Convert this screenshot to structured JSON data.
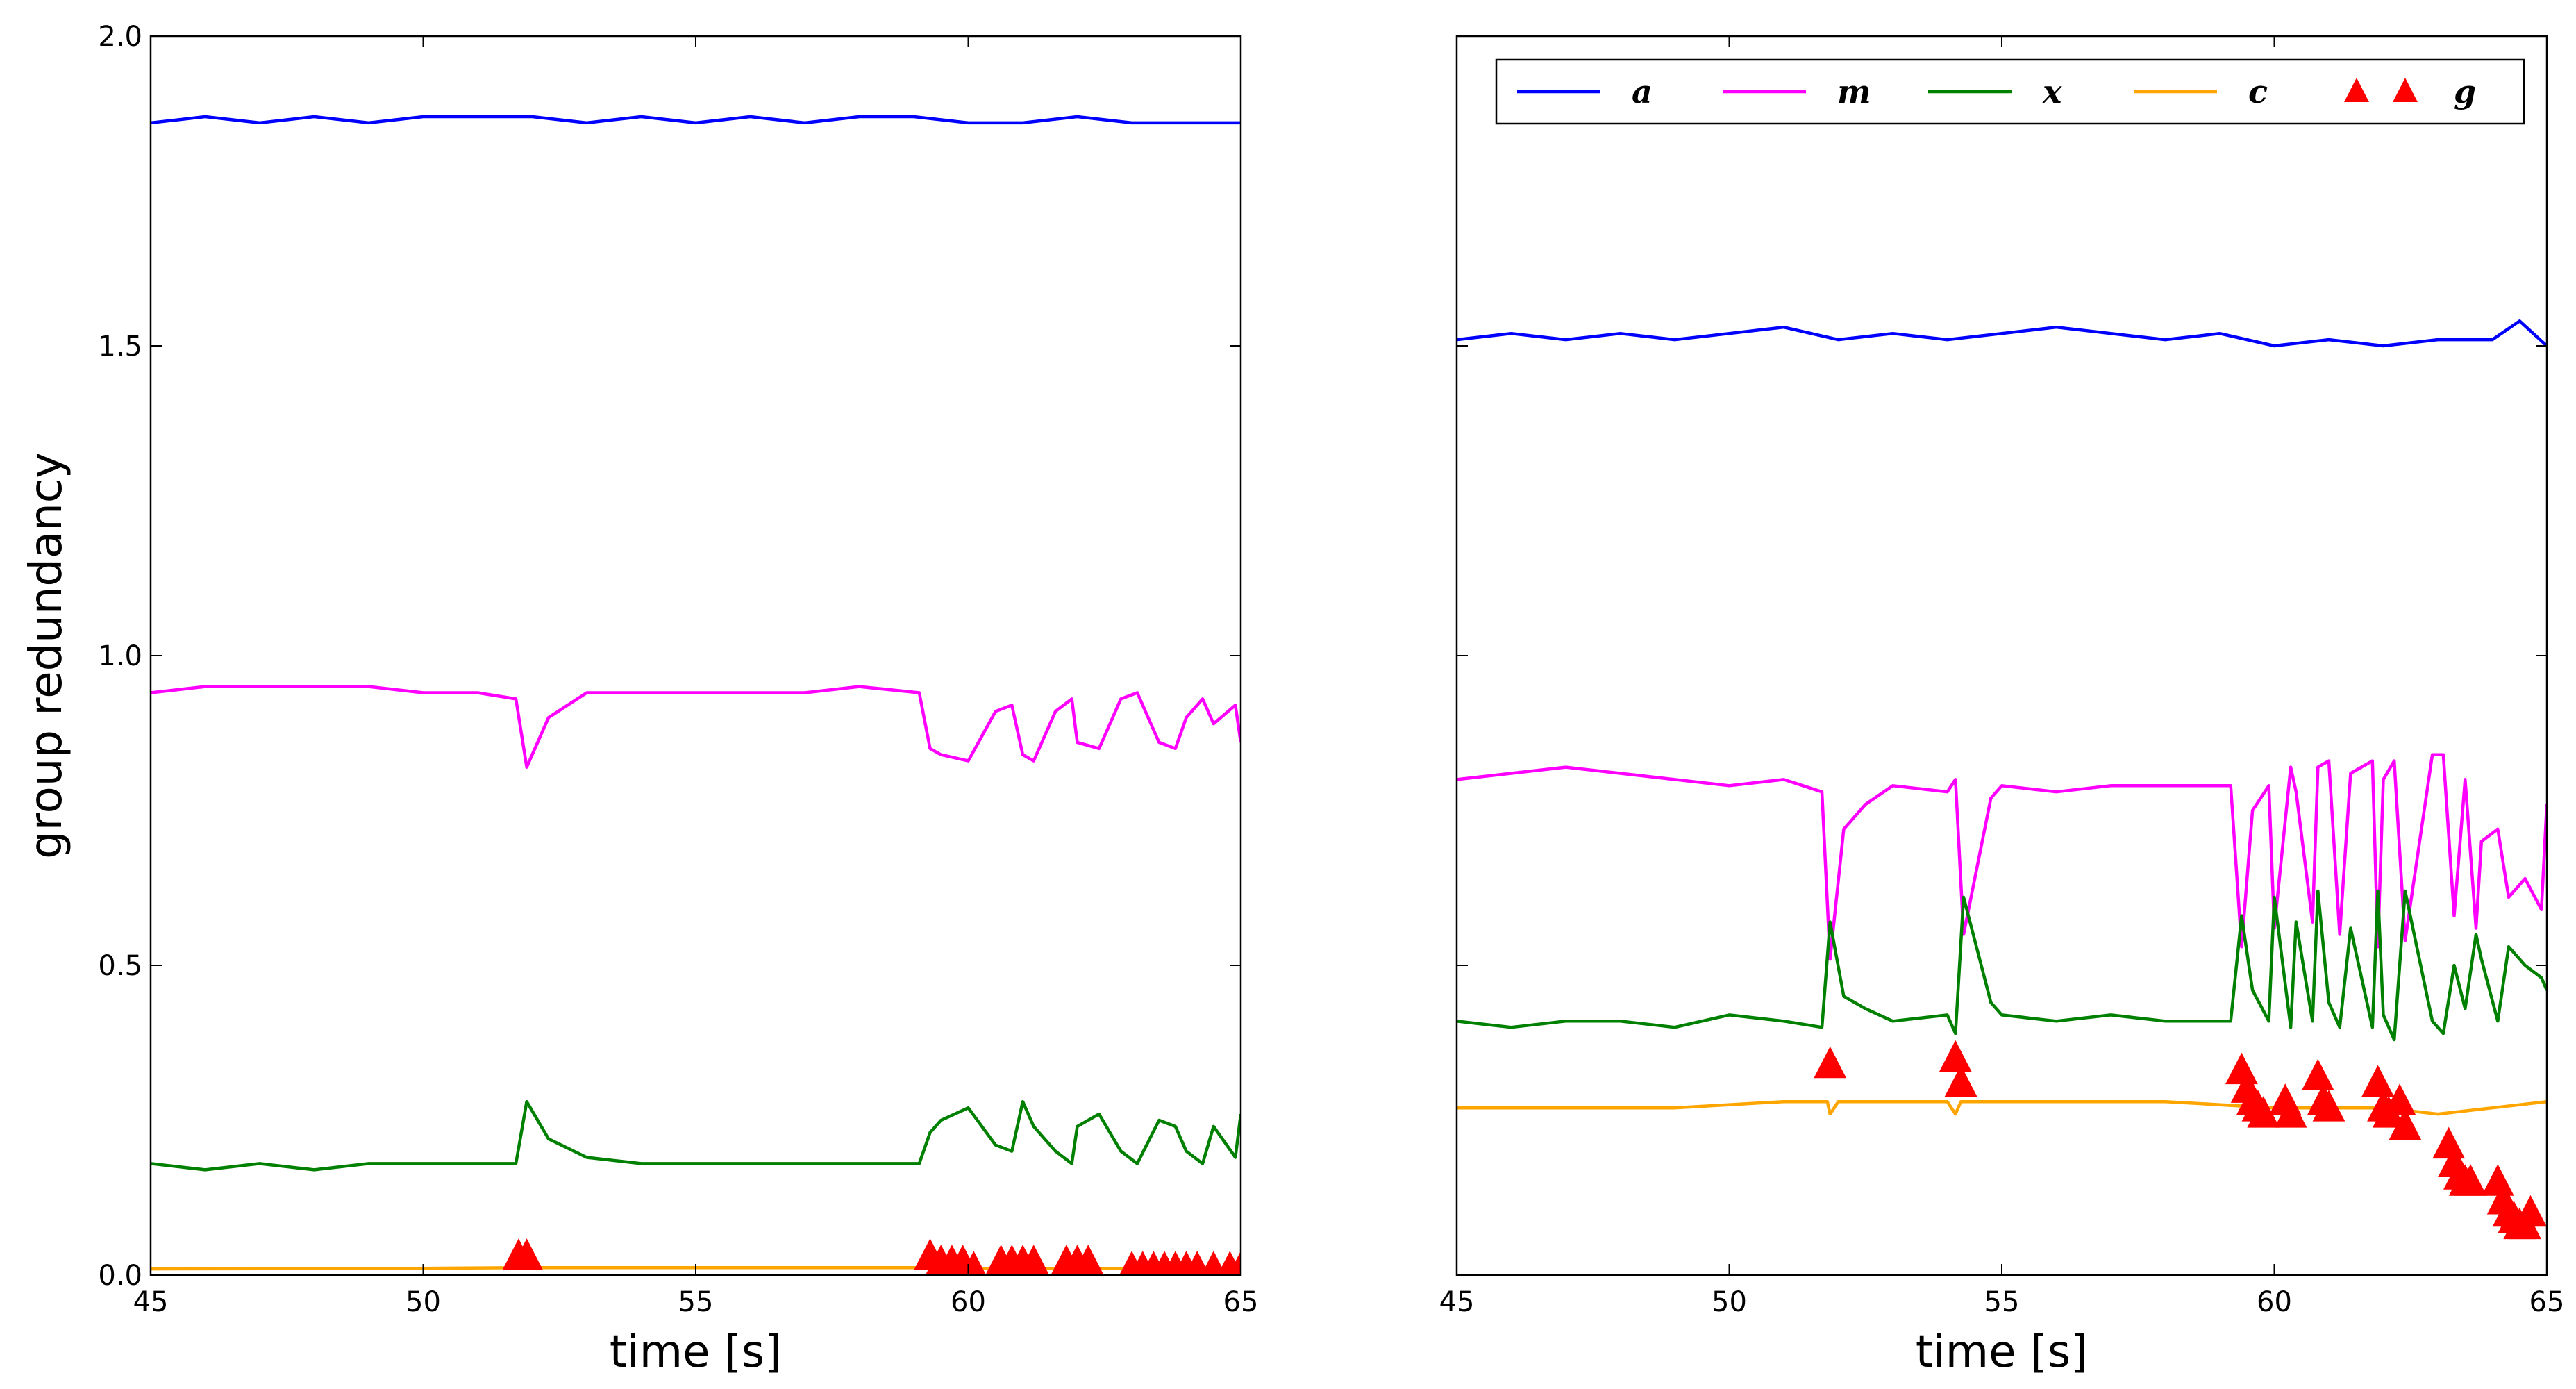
{
  "colors": {
    "a": "#0000ff",
    "m": "#ff00ff",
    "x": "#008000",
    "c": "#ffa500",
    "g": "#ff0000"
  },
  "chart_data": [
    {
      "type": "line",
      "xlabel": "time [s]",
      "ylabel": "group redundancy",
      "xlim": [
        45,
        65
      ],
      "ylim": [
        0.0,
        2.0
      ],
      "xticks": [
        45,
        50,
        55,
        60,
        65
      ],
      "yticks": [
        0.0,
        0.5,
        1.0,
        1.5,
        2.0
      ],
      "ytick_labels": [
        "0.0",
        "0.5",
        "1.0",
        "1.5",
        "2.0"
      ],
      "show_ytick_labels": true,
      "grid": false,
      "series": [
        {
          "name": "a",
          "key": "a",
          "x": [
            45,
            46,
            47,
            48,
            49,
            50,
            51,
            52,
            53,
            54,
            55,
            56,
            57,
            58,
            59,
            60,
            61,
            62,
            63,
            64,
            65
          ],
          "y": [
            1.86,
            1.87,
            1.86,
            1.87,
            1.86,
            1.87,
            1.87,
            1.87,
            1.86,
            1.87,
            1.86,
            1.87,
            1.86,
            1.87,
            1.87,
            1.86,
            1.86,
            1.87,
            1.86,
            1.86,
            1.86
          ]
        },
        {
          "name": "m",
          "key": "m",
          "x": [
            45,
            46,
            47,
            48,
            49,
            50,
            51,
            51.7,
            51.9,
            52.3,
            53,
            54,
            55,
            56,
            57,
            58,
            59.1,
            59.3,
            59.5,
            60,
            60.5,
            60.8,
            61,
            61.2,
            61.6,
            61.9,
            62,
            62.4,
            62.8,
            63.1,
            63.5,
            63.8,
            64,
            64.3,
            64.5,
            64.9,
            65
          ],
          "y": [
            0.94,
            0.95,
            0.95,
            0.95,
            0.95,
            0.94,
            0.94,
            0.93,
            0.82,
            0.9,
            0.94,
            0.94,
            0.94,
            0.94,
            0.94,
            0.95,
            0.94,
            0.85,
            0.84,
            0.83,
            0.91,
            0.92,
            0.84,
            0.83,
            0.91,
            0.93,
            0.86,
            0.85,
            0.93,
            0.94,
            0.86,
            0.85,
            0.9,
            0.93,
            0.89,
            0.92,
            0.86
          ]
        },
        {
          "name": "x",
          "key": "x",
          "x": [
            45,
            46,
            47,
            48,
            49,
            50,
            51,
            51.7,
            51.9,
            52.3,
            53,
            54,
            55,
            56,
            57,
            58,
            59.1,
            59.3,
            59.5,
            60,
            60.5,
            60.8,
            61,
            61.2,
            61.6,
            61.9,
            62,
            62.4,
            62.8,
            63.1,
            63.5,
            63.8,
            64,
            64.3,
            64.5,
            64.9,
            65
          ],
          "y": [
            0.18,
            0.17,
            0.18,
            0.17,
            0.18,
            0.18,
            0.18,
            0.18,
            0.28,
            0.22,
            0.19,
            0.18,
            0.18,
            0.18,
            0.18,
            0.18,
            0.18,
            0.23,
            0.25,
            0.27,
            0.21,
            0.2,
            0.28,
            0.24,
            0.2,
            0.18,
            0.24,
            0.26,
            0.2,
            0.18,
            0.25,
            0.24,
            0.2,
            0.18,
            0.24,
            0.19,
            0.26
          ]
        },
        {
          "name": "c",
          "key": "c",
          "x": [
            45,
            50,
            51.8,
            55,
            59,
            60,
            65
          ],
          "y": [
            0.01,
            0.011,
            0.012,
            0.012,
            0.012,
            0.011,
            0.011
          ]
        },
        {
          "name": "g",
          "key": "g",
          "marker": "triangle",
          "x": [
            51.75,
            51.9,
            59.3,
            59.5,
            59.7,
            59.9,
            60.1,
            60.6,
            60.8,
            61.0,
            61.2,
            61.8,
            62.0,
            62.2,
            63.0,
            63.2,
            63.4,
            63.6,
            63.8,
            64.0,
            64.2,
            64.5,
            64.8,
            65.0
          ],
          "y": [
            0.03,
            0.03,
            0.03,
            0.02,
            0.02,
            0.02,
            0.01,
            0.02,
            0.02,
            0.02,
            0.02,
            0.02,
            0.02,
            0.02,
            0.01,
            0.01,
            0.01,
            0.01,
            0.01,
            0.01,
            0.01,
            0.01,
            0.01,
            0.01
          ]
        }
      ]
    },
    {
      "type": "line",
      "xlabel": "time [s]",
      "ylabel": "",
      "xlim": [
        45,
        65
      ],
      "ylim": [
        0.0,
        2.0
      ],
      "xticks": [
        45,
        50,
        55,
        60,
        65
      ],
      "yticks": [
        0.0,
        0.5,
        1.0,
        1.5,
        2.0
      ],
      "show_ytick_labels": false,
      "grid": false,
      "legend": {
        "placement": "top",
        "entries": [
          "a",
          "m",
          "x",
          "c",
          "g"
        ]
      },
      "series": [
        {
          "name": "a",
          "key": "a",
          "x": [
            45,
            46,
            47,
            48,
            49,
            50,
            51,
            52,
            53,
            54,
            55,
            56,
            57,
            58,
            59,
            60,
            61,
            62,
            63,
            64,
            64.5,
            65
          ],
          "y": [
            1.51,
            1.52,
            1.51,
            1.52,
            1.51,
            1.52,
            1.53,
            1.51,
            1.52,
            1.51,
            1.52,
            1.53,
            1.52,
            1.51,
            1.52,
            1.5,
            1.51,
            1.5,
            1.51,
            1.51,
            1.54,
            1.5
          ]
        },
        {
          "name": "m",
          "key": "m",
          "x": [
            45,
            46,
            47,
            48,
            49,
            50,
            51,
            51.7,
            51.85,
            52.1,
            52.5,
            53,
            54,
            54.15,
            54.3,
            54.8,
            55,
            56,
            57,
            58,
            59.2,
            59.4,
            59.6,
            59.9,
            60.0,
            60.3,
            60.4,
            60.7,
            60.8,
            61.0,
            61.2,
            61.4,
            61.8,
            61.9,
            62.0,
            62.2,
            62.4,
            62.9,
            63.1,
            63.3,
            63.5,
            63.7,
            63.8,
            64.1,
            64.3,
            64.6,
            64.9,
            65
          ],
          "y": [
            0.8,
            0.81,
            0.82,
            0.81,
            0.8,
            0.79,
            0.8,
            0.78,
            0.51,
            0.72,
            0.76,
            0.79,
            0.78,
            0.8,
            0.55,
            0.77,
            0.79,
            0.78,
            0.79,
            0.79,
            0.79,
            0.53,
            0.75,
            0.79,
            0.56,
            0.82,
            0.78,
            0.57,
            0.82,
            0.83,
            0.55,
            0.81,
            0.83,
            0.53,
            0.8,
            0.83,
            0.54,
            0.84,
            0.84,
            0.58,
            0.8,
            0.56,
            0.7,
            0.72,
            0.61,
            0.64,
            0.59,
            0.76
          ]
        },
        {
          "name": "x",
          "key": "x",
          "x": [
            45,
            46,
            47,
            48,
            49,
            50,
            51,
            51.7,
            51.85,
            52.1,
            52.5,
            53,
            54,
            54.15,
            54.3,
            54.8,
            55,
            56,
            57,
            58,
            59.2,
            59.4,
            59.6,
            59.9,
            60.0,
            60.3,
            60.4,
            60.7,
            60.8,
            61.0,
            61.2,
            61.4,
            61.8,
            61.9,
            62.0,
            62.2,
            62.4,
            62.9,
            63.1,
            63.3,
            63.5,
            63.7,
            63.8,
            64.1,
            64.3,
            64.6,
            64.9,
            65
          ],
          "y": [
            0.41,
            0.4,
            0.41,
            0.41,
            0.4,
            0.42,
            0.41,
            0.4,
            0.57,
            0.45,
            0.43,
            0.41,
            0.42,
            0.39,
            0.61,
            0.44,
            0.42,
            0.41,
            0.42,
            0.41,
            0.41,
            0.58,
            0.46,
            0.41,
            0.61,
            0.4,
            0.57,
            0.41,
            0.62,
            0.44,
            0.4,
            0.56,
            0.4,
            0.62,
            0.42,
            0.38,
            0.62,
            0.41,
            0.39,
            0.5,
            0.43,
            0.55,
            0.51,
            0.41,
            0.53,
            0.5,
            0.48,
            0.46
          ]
        },
        {
          "name": "c",
          "key": "c",
          "x": [
            45,
            47,
            49,
            51,
            51.8,
            51.85,
            52,
            54,
            54.15,
            54.25,
            56,
            58,
            60,
            62,
            63,
            64,
            65
          ],
          "y": [
            0.27,
            0.27,
            0.27,
            0.28,
            0.28,
            0.26,
            0.28,
            0.28,
            0.26,
            0.28,
            0.28,
            0.28,
            0.27,
            0.27,
            0.26,
            0.27,
            0.28
          ]
        },
        {
          "name": "g",
          "key": "g",
          "marker": "triangle",
          "x": [
            51.85,
            54.15,
            54.25,
            59.4,
            59.5,
            59.6,
            59.7,
            59.8,
            60.2,
            60.3,
            60.8,
            60.9,
            61.0,
            61.9,
            62.0,
            62.1,
            62.3,
            62.4,
            63.2,
            63.3,
            63.4,
            63.5,
            63.6,
            64.1,
            64.2,
            64.3,
            64.4,
            64.5,
            64.6,
            64.7
          ],
          "y": [
            0.34,
            0.35,
            0.31,
            0.33,
            0.3,
            0.28,
            0.27,
            0.26,
            0.28,
            0.26,
            0.32,
            0.28,
            0.27,
            0.31,
            0.27,
            0.26,
            0.28,
            0.24,
            0.21,
            0.18,
            0.16,
            0.15,
            0.15,
            0.15,
            0.12,
            0.1,
            0.09,
            0.08,
            0.08,
            0.1
          ]
        }
      ]
    }
  ]
}
